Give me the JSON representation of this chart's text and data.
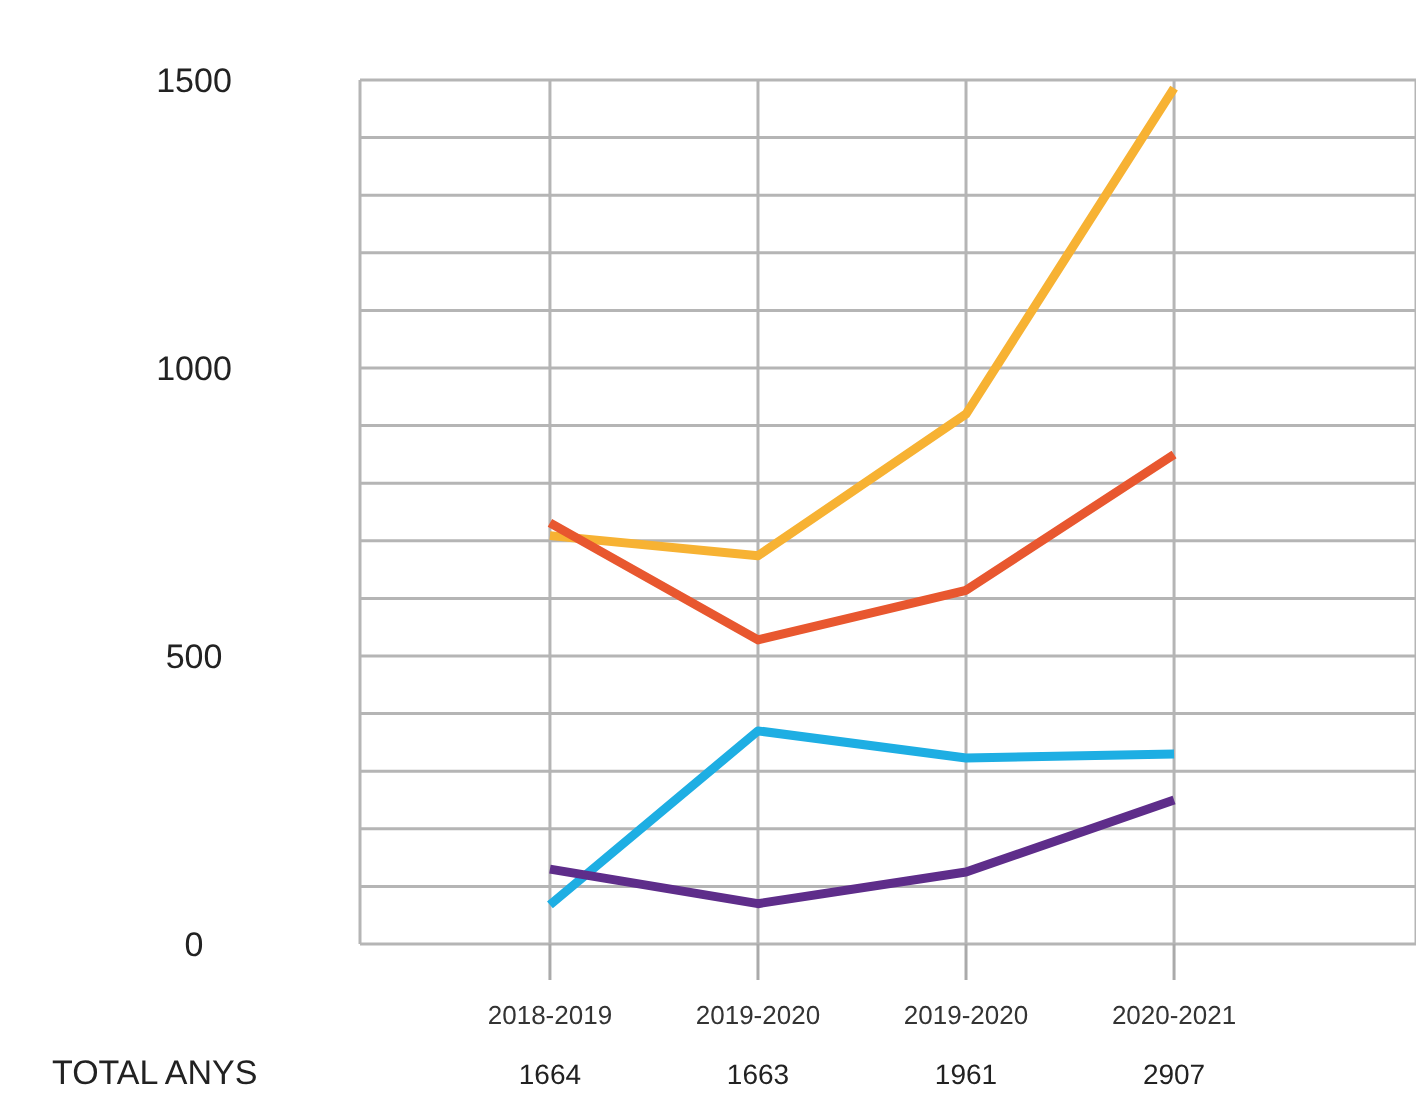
{
  "chart_data": {
    "type": "line",
    "categories": [
      "2018-2019",
      "2019-2020",
      "2019-2020",
      "2020-2021"
    ],
    "series": [
      {
        "color": "#f7b233",
        "values": [
          709,
          674,
          920,
          1486
        ]
      },
      {
        "color": "#e8572f",
        "values": [
          731,
          528,
          614,
          850
        ]
      },
      {
        "color": "#1eaee3",
        "values": [
          68,
          370,
          323,
          330
        ]
      },
      {
        "color": "#5e2d8a",
        "values": [
          130,
          70,
          125,
          250
        ]
      }
    ],
    "totals": [
      "1664",
      "1663",
      "1961",
      "2907"
    ],
    "annotations": [
      "TOTAL ANYS"
    ],
    "ylim": [
      0,
      1500
    ],
    "yticks": [
      0,
      {
        "value": 100,
        "label": null
      },
      {
        "value": 200,
        "label": null
      },
      {
        "value": 300,
        "label": null
      },
      {
        "value": 400,
        "label": null
      },
      500,
      {
        "value": 600,
        "label": null
      },
      {
        "value": 700,
        "label": null
      },
      {
        "value": 800,
        "label": null
      },
      {
        "value": 900,
        "label": null
      },
      1000,
      {
        "value": 1100,
        "label": null
      },
      {
        "value": 1200,
        "label": null
      },
      {
        "value": 1300,
        "label": null
      },
      {
        "value": 1400,
        "label": null
      },
      1500
    ],
    "grid": true,
    "marker": "none",
    "line_style": "solid"
  }
}
